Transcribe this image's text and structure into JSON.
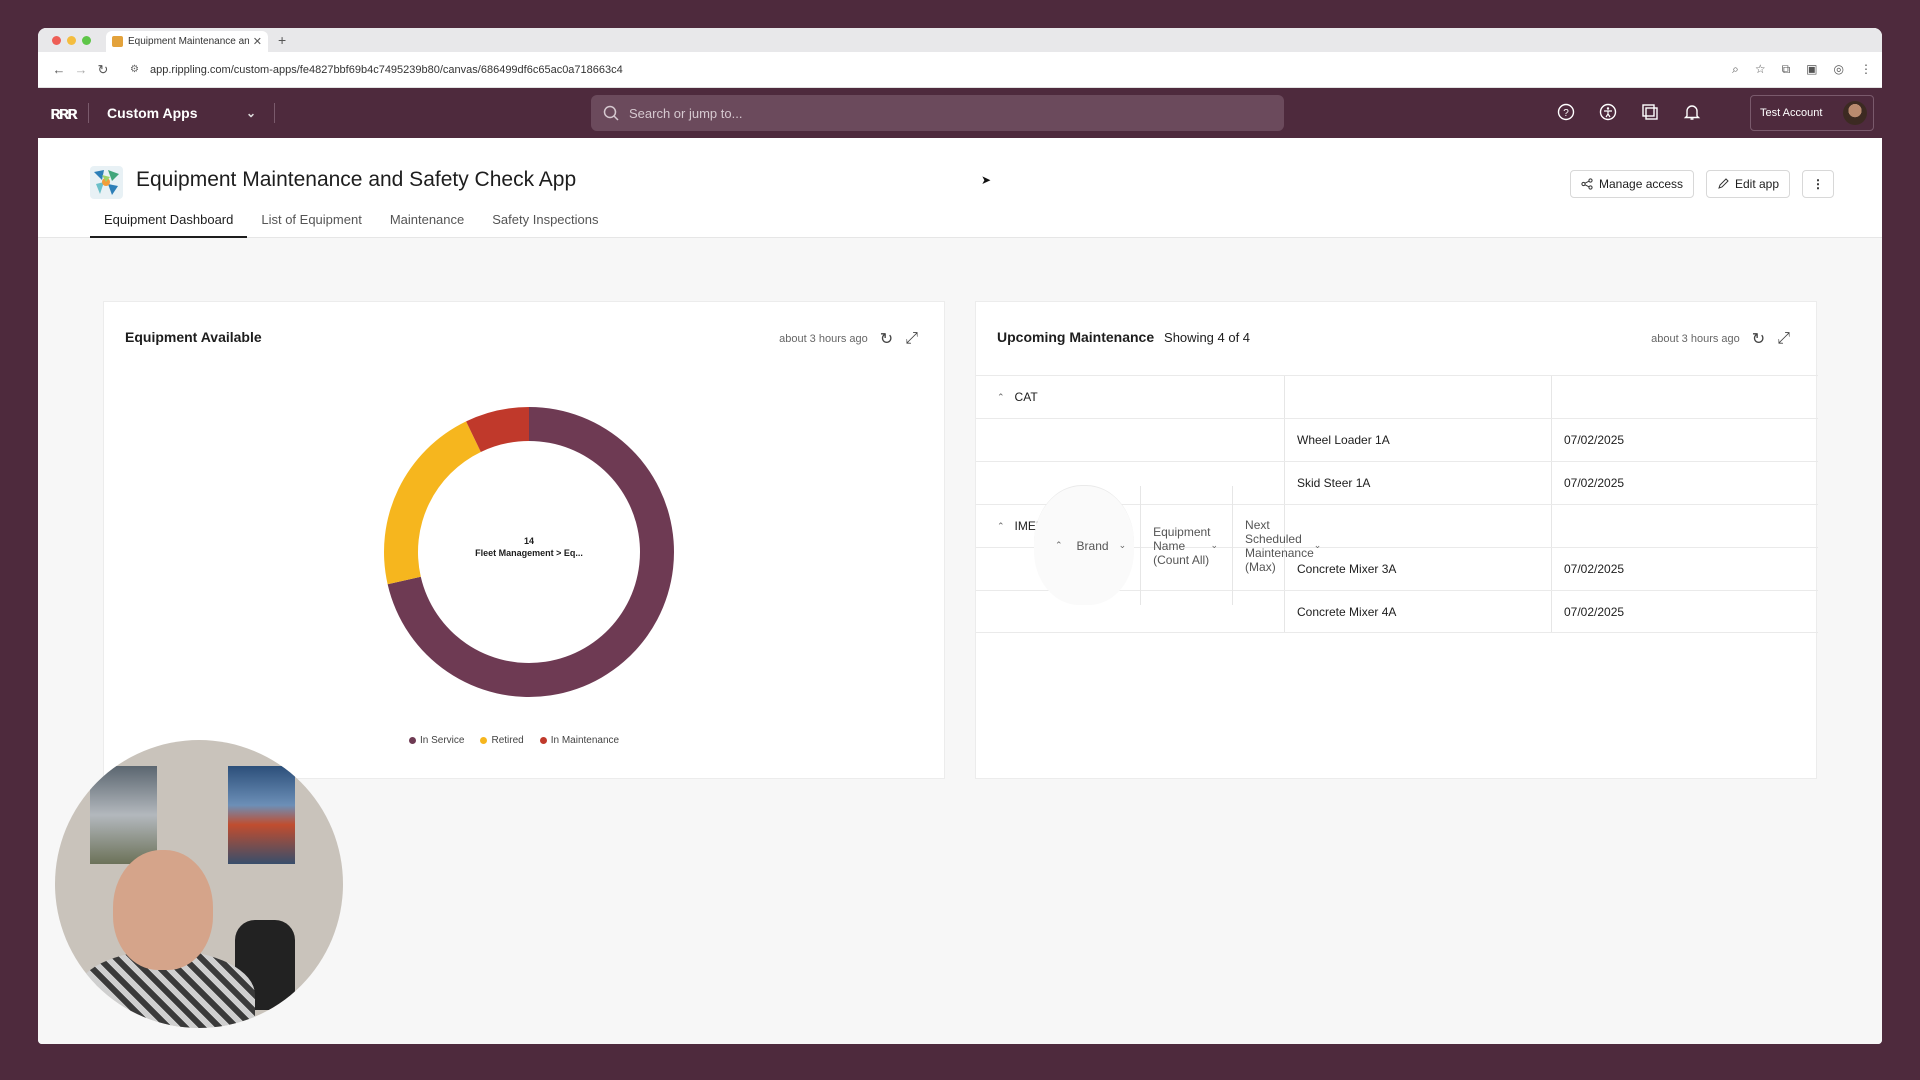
{
  "browser": {
    "tab_title": "Equipment Maintenance and",
    "url": "app.rippling.com/custom-apps/fe4827bbf69b4c7495239b80/canvas/686499df6c65ac0a718663c4"
  },
  "appnav": {
    "app_selector": "Custom Apps",
    "search_placeholder": "Search or jump to...",
    "account_name": "Test Account"
  },
  "page": {
    "title": "Equipment Maintenance and Safety Check App",
    "tabs": [
      "Equipment Dashboard",
      "List of Equipment",
      "Maintenance",
      "Safety Inspections"
    ],
    "active_tab": "Equipment Dashboard",
    "manage_access_label": "Manage access",
    "edit_app_label": "Edit app"
  },
  "equipment_card": {
    "title": "Equipment Available",
    "updated": "about 3 hours ago",
    "center_value": "14",
    "center_label": "Fleet Management > Eq...",
    "legend": [
      "In Service",
      "Retired",
      "In Maintenance"
    ]
  },
  "chart_data": {
    "type": "pie",
    "variant": "donut",
    "categories": [
      "In Service",
      "Retired",
      "In Maintenance"
    ],
    "values": [
      10,
      3,
      1
    ],
    "colors": [
      "#6e3a53",
      "#f6b61e",
      "#c0392b"
    ],
    "total": 14,
    "legend_position": "bottom"
  },
  "maintenance_card": {
    "title": "Upcoming Maintenance",
    "showing": "Showing 4 of 4",
    "updated": "about 3 hours ago",
    "columns": [
      "Brand",
      "Equipment Name (Count All)",
      "Next Scheduled Maintenance (Max)"
    ],
    "groups": [
      {
        "brand": "CAT",
        "rows": [
          {
            "name": "Wheel Loader 1A",
            "date": "07/02/2025"
          },
          {
            "name": "Skid Steer 1A",
            "date": "07/02/2025"
          }
        ]
      },
      {
        "brand": "IMER",
        "rows": [
          {
            "name": "Concrete Mixer 3A",
            "date": "07/02/2025"
          },
          {
            "name": "Concrete Mixer 4A",
            "date": "07/02/2025"
          }
        ]
      }
    ]
  },
  "colors": {
    "brand_plum": "#4e2a3d",
    "in_service": "#6e3a53",
    "retired": "#f6b61e",
    "in_maintenance": "#c0392b"
  }
}
